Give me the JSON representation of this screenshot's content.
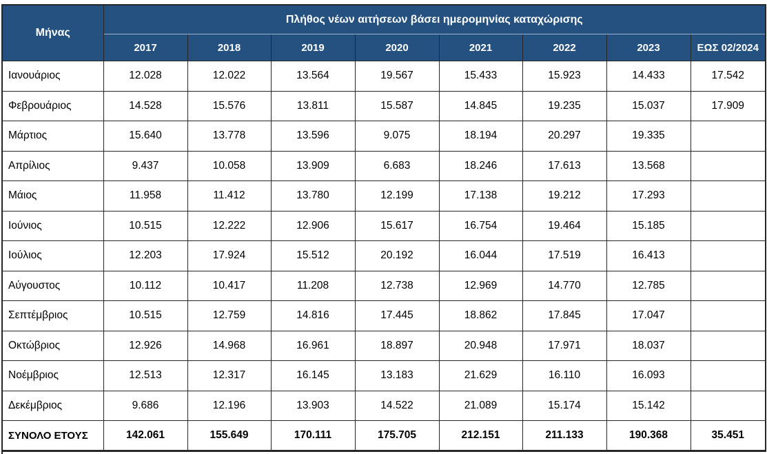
{
  "table": {
    "corner_header": "Μήνας",
    "span_header": "Πλήθος νέων αιτήσεων βάσει ημερομηνίας καταχώρισης",
    "year_headers": [
      "2017",
      "2018",
      "2019",
      "2020",
      "2021",
      "2022",
      "2023",
      "ΕΩΣ 02/2024"
    ],
    "rows": [
      {
        "month": "Ιανουάριος",
        "values": [
          "12.028",
          "12.022",
          "13.564",
          "19.567",
          "15.433",
          "15.923",
          "14.433",
          "17.542"
        ]
      },
      {
        "month": "Φεβρουάριος",
        "values": [
          "14.528",
          "15.576",
          "13.811",
          "15.587",
          "14.845",
          "19.235",
          "15.037",
          "17.909"
        ]
      },
      {
        "month": "Μάρτιος",
        "values": [
          "15.640",
          "13.778",
          "13.596",
          "9.075",
          "18.194",
          "20.297",
          "19.335",
          ""
        ]
      },
      {
        "month": "Απρίλιος",
        "values": [
          "9.437",
          "10.058",
          "13.909",
          "6.683",
          "18.246",
          "17.613",
          "13.568",
          ""
        ]
      },
      {
        "month": "Μάιος",
        "values": [
          "11.958",
          "11.412",
          "13.780",
          "12.199",
          "17.138",
          "19.212",
          "17.293",
          ""
        ]
      },
      {
        "month": "Ιούνιος",
        "values": [
          "10.515",
          "12.222",
          "12.906",
          "15.617",
          "16.754",
          "19.464",
          "15.185",
          ""
        ]
      },
      {
        "month": "Ιούλιος",
        "values": [
          "12.203",
          "17.924",
          "15.512",
          "20.192",
          "16.044",
          "17.519",
          "16.413",
          ""
        ]
      },
      {
        "month": "Αύγουστος",
        "values": [
          "10.112",
          "10.417",
          "11.208",
          "12.738",
          "12.969",
          "14.770",
          "12.785",
          ""
        ]
      },
      {
        "month": "Σεπτέμβριος",
        "values": [
          "10.515",
          "12.759",
          "14.816",
          "17.445",
          "18.862",
          "17.845",
          "17.047",
          ""
        ]
      },
      {
        "month": "Οκτώβριος",
        "values": [
          "12.926",
          "14.968",
          "16.961",
          "18.897",
          "20.948",
          "17.971",
          "18.037",
          ""
        ]
      },
      {
        "month": "Νοέμβριος",
        "values": [
          "12.513",
          "12.317",
          "16.145",
          "13.183",
          "21.629",
          "16.110",
          "16.093",
          ""
        ]
      },
      {
        "month": "Δεκέμβριος",
        "values": [
          "9.686",
          "12.196",
          "13.903",
          "14.522",
          "21.089",
          "15.174",
          "15.142",
          ""
        ]
      }
    ],
    "total_row": {
      "label": "ΣΥΝΟΛΟ ΕΤΟΥΣ",
      "values": [
        "142.061",
        "155.649",
        "170.111",
        "175.705",
        "212.151",
        "211.133",
        "190.368",
        "35.451"
      ]
    },
    "colors": {
      "header_bg": "#24517F",
      "header_text": "#FFFFFF",
      "body_text": "#000000",
      "border": "#262626"
    }
  }
}
